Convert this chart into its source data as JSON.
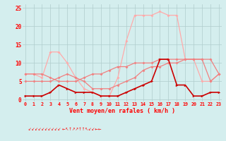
{
  "x": [
    0,
    1,
    2,
    3,
    4,
    5,
    6,
    7,
    8,
    9,
    10,
    11,
    12,
    13,
    14,
    15,
    16,
    17,
    18,
    19,
    20,
    21,
    22,
    23
  ],
  "line_rafales": [
    7,
    7,
    6,
    13,
    13,
    10,
    6,
    3,
    2,
    1,
    1,
    6,
    16,
    23,
    23,
    23,
    24,
    23,
    23,
    11,
    11,
    5,
    5,
    7
  ],
  "line_moy_hi": [
    7,
    7,
    7,
    6,
    5,
    5,
    5,
    6,
    7,
    7,
    8,
    9,
    9,
    10,
    10,
    10,
    11,
    11,
    11,
    11,
    11,
    11,
    11,
    7
  ],
  "line_moy_lo": [
    5,
    5,
    5,
    5,
    6,
    7,
    6,
    5,
    3,
    3,
    3,
    4,
    5,
    6,
    8,
    9,
    9,
    10,
    10,
    11,
    11,
    11,
    5,
    7
  ],
  "line_base": [
    1,
    1,
    1,
    2,
    4,
    3,
    2,
    2,
    2,
    1,
    1,
    1,
    2,
    3,
    4,
    5,
    11,
    11,
    4,
    4,
    1,
    1,
    2,
    2
  ],
  "color_rafales": "#ffaaaa",
  "color_moy_hi": "#f08080",
  "color_moy_lo": "#f08080",
  "color_base": "#cc0000",
  "bg_color": "#d4eeee",
  "grid_color": "#b0cccc",
  "xlabel": "Vent moyen/en rafales ( km/h )",
  "yticks": [
    0,
    5,
    10,
    15,
    20,
    25
  ],
  "xticks": [
    0,
    1,
    2,
    3,
    4,
    5,
    6,
    7,
    8,
    9,
    10,
    11,
    12,
    13,
    14,
    15,
    16,
    17,
    18,
    19,
    20,
    21,
    22,
    23
  ],
  "ylim": [
    -0.5,
    26
  ],
  "xlim": [
    -0.3,
    23.3
  ]
}
